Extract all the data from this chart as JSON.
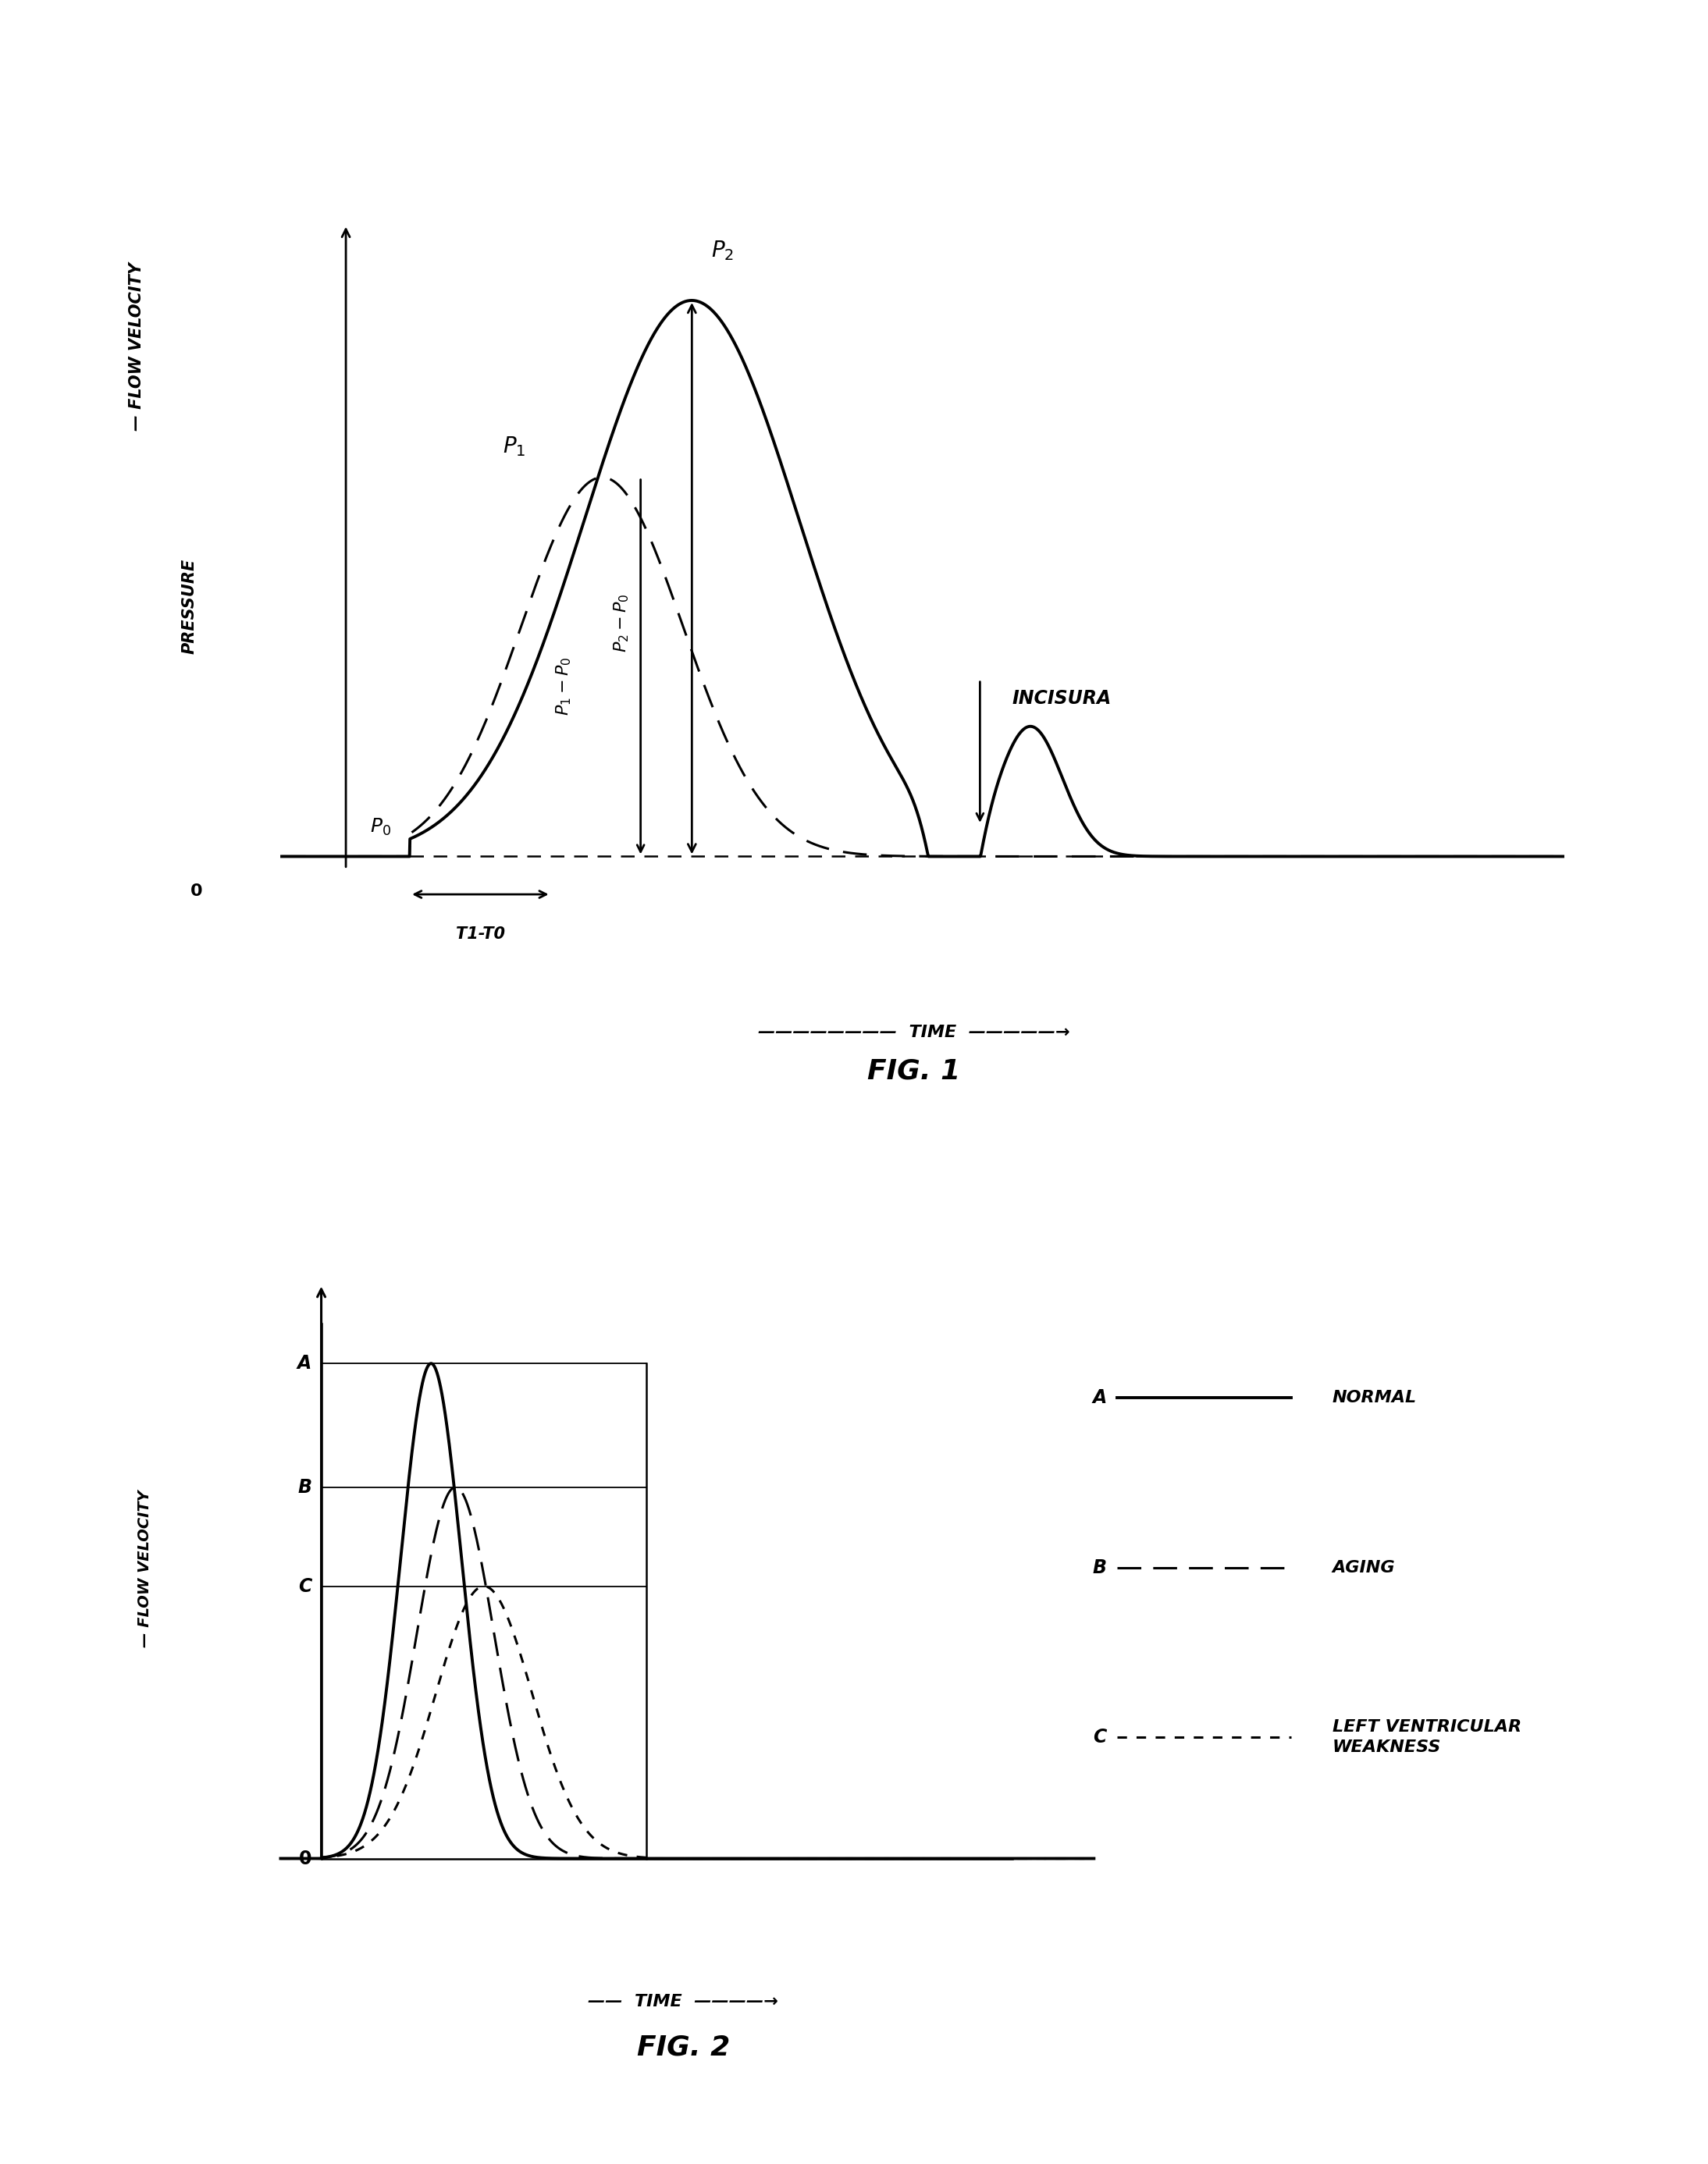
{
  "background_color": "#ffffff",
  "line_color": "#000000",
  "fig1_title": "FIG. 1",
  "fig2_title": "FIG. 2",
  "time_label": "TIME",
  "flow_vel_label": "FLOW VELOCITY",
  "pressure_label": "PRESSURE",
  "p0": "P₀",
  "p1": "P₁",
  "p2": "P₂",
  "p1_p0": "P₁ - P₀",
  "p2_p0": "P₂ - P₀",
  "t1t0": "T1-T0",
  "incisura": "INCISURA",
  "legend_A_label": "A",
  "legend_B_label": "B",
  "legend_C_label": "C",
  "legend_A_text": "NORMAL",
  "legend_B_text": "AGING",
  "legend_C_text": "LEFT VENTRICULAR\nWEAKNESS"
}
